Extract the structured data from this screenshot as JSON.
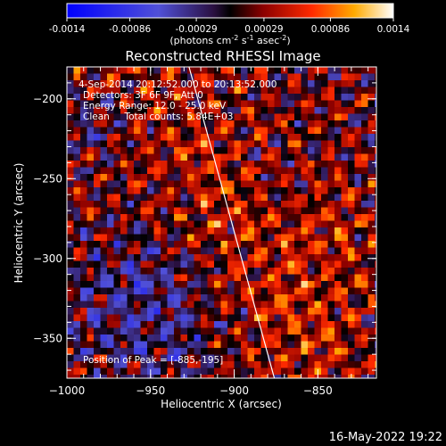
{
  "colorbar": {
    "tick_labels": [
      "-0.0014",
      "-0.00086",
      "-0.00029",
      "0.00029",
      "0.00086",
      "0.0014"
    ],
    "ticks": [
      -0.0014,
      -0.00086,
      -0.00029,
      0.00029,
      0.00086,
      0.0014
    ],
    "range": [
      -0.0014,
      0.0014
    ],
    "unit_prefix": "(photons cm",
    "unit_exp1": "-2",
    "unit_mid1": " s",
    "unit_exp2": "-1",
    "unit_mid2": " asec",
    "unit_exp3": "-2",
    "unit_suffix": ")"
  },
  "chart_data": {
    "type": "heatmap",
    "title": "Reconstructed RHESSI Image",
    "xlabel": "Heliocentric X (arcsec)",
    "ylabel": "Heliocentric Y (arcsec)",
    "xlim": [
      -1000,
      -815
    ],
    "ylim": [
      -375,
      -180
    ],
    "x_ticks": [
      -1000,
      -950,
      -900,
      -850
    ],
    "x_tick_labels": [
      "−1000",
      "−950",
      "−900",
      "−850"
    ],
    "y_ticks": [
      -200,
      -250,
      -300,
      -350
    ],
    "y_tick_labels": [
      "−200",
      "−250",
      "−300",
      "−350"
    ],
    "limb_line": [
      [
        -927,
        -180
      ],
      [
        -876,
        -375
      ]
    ],
    "annotations": [
      "4-Sep-2014 20:12:52.000 to 20:13:52.000",
      "Detectors: 3F 6F 9F, Att 0",
      "Energy Range: 12.0 - 25.0 keV",
      "Clean     Total counts: 5.84E+03"
    ],
    "peak_label": "Position of Peak = [-885,-195]",
    "peak_position": [
      -885,
      -195
    ]
  },
  "footer": {
    "timestamp": "16-May-2022 19:22"
  }
}
